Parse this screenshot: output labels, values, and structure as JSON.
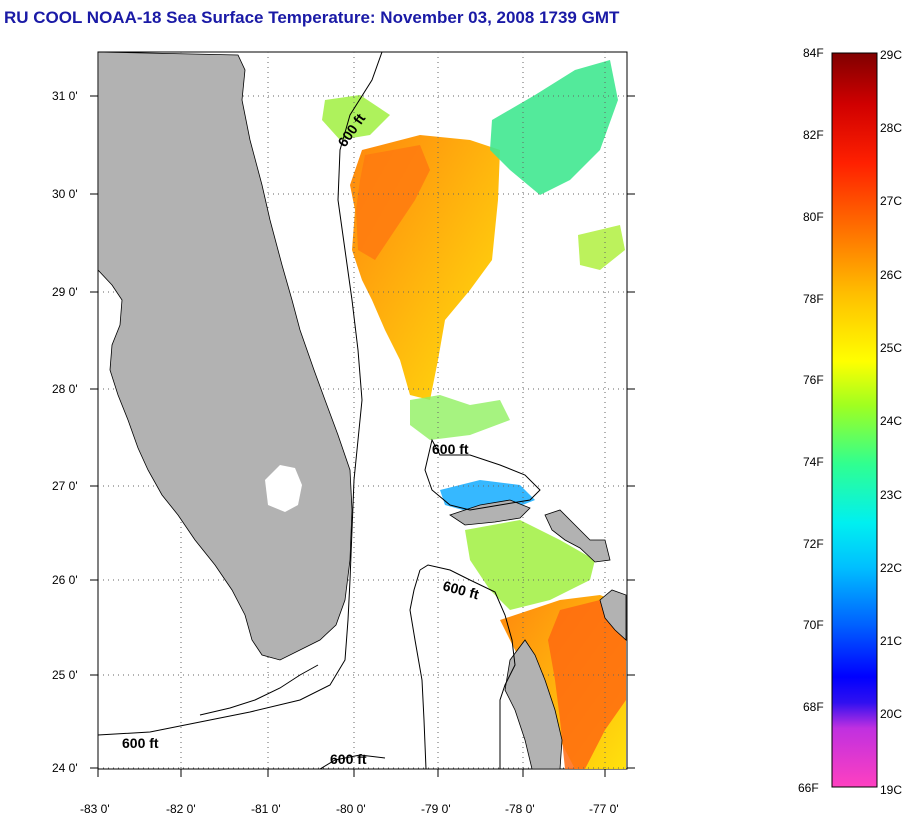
{
  "title": "RU COOL  NOAA-18  Sea Surface Temperature:  November 03, 2008 1739 GMT",
  "map": {
    "lat_labels": [
      "31 0'",
      "30 0'",
      "29 0'",
      "28 0'",
      "27 0'",
      "26 0'",
      "25 0'",
      "24 0'"
    ],
    "lon_labels": [
      "-83 0'",
      "-82 0'",
      "-81 0'",
      "-80 0'",
      "-79 0'",
      "-78 0'",
      "-77 0'"
    ],
    "contour_labels": [
      "600 ft",
      "600 ft",
      "600 ft",
      "600 ft",
      "600 ft"
    ],
    "land_color": "#b2b2b2"
  },
  "colorbar": {
    "f_labels": [
      "84F",
      "82F",
      "80F",
      "78F",
      "76F",
      "74F",
      "72F",
      "70F",
      "68F",
      "66F"
    ],
    "c_labels": [
      "29C",
      "28C",
      "27C",
      "26C",
      "25C",
      "24C",
      "23C",
      "22C",
      "21C",
      "20C",
      "19C"
    ]
  }
}
